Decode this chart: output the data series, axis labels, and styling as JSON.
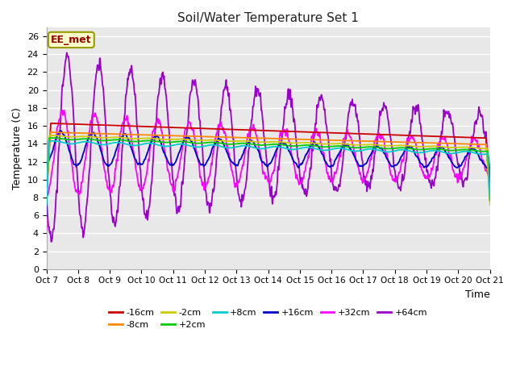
{
  "title": "Soil/Water Temperature Set 1",
  "xlabel": "Time",
  "ylabel": "Temperature (C)",
  "ylim": [
    0,
    27
  ],
  "yticks": [
    0,
    2,
    4,
    6,
    8,
    10,
    12,
    14,
    16,
    18,
    20,
    22,
    24,
    26
  ],
  "annotation_text": "EE_met",
  "annotation_color": "#990000",
  "annotation_bg": "#ffffcc",
  "annotation_border": "#999900",
  "series_colors": {
    "-16cm": "#cc0000",
    "-8cm": "#ff8800",
    "-2cm": "#cccc00",
    "+2cm": "#00cc00",
    "+8cm": "#00cccc",
    "+16cm": "#0000cc",
    "+32cm": "#ff00ff",
    "+64cm": "#9900cc"
  },
  "background_color": "#ffffff",
  "plot_bg_color": "#e8e8e8",
  "grid_color": "#ffffff",
  "xtick_labels": [
    "Oct 7",
    "Oct 8",
    "Oct 9",
    "Oct 10",
    "Oct 11",
    "Oct 12",
    "Oct 13",
    "Oct 14",
    "Oct 15",
    "Oct 16",
    "Oct 17",
    "Oct 18",
    "Oct 19",
    "Oct 20",
    "Oct 21"
  ],
  "num_points": 1000,
  "legend_row1": [
    "-16cm",
    "-8cm",
    "-2cm",
    "+2cm",
    "+8cm",
    "+16cm"
  ],
  "legend_row2": [
    "+32cm",
    "+64cm"
  ]
}
